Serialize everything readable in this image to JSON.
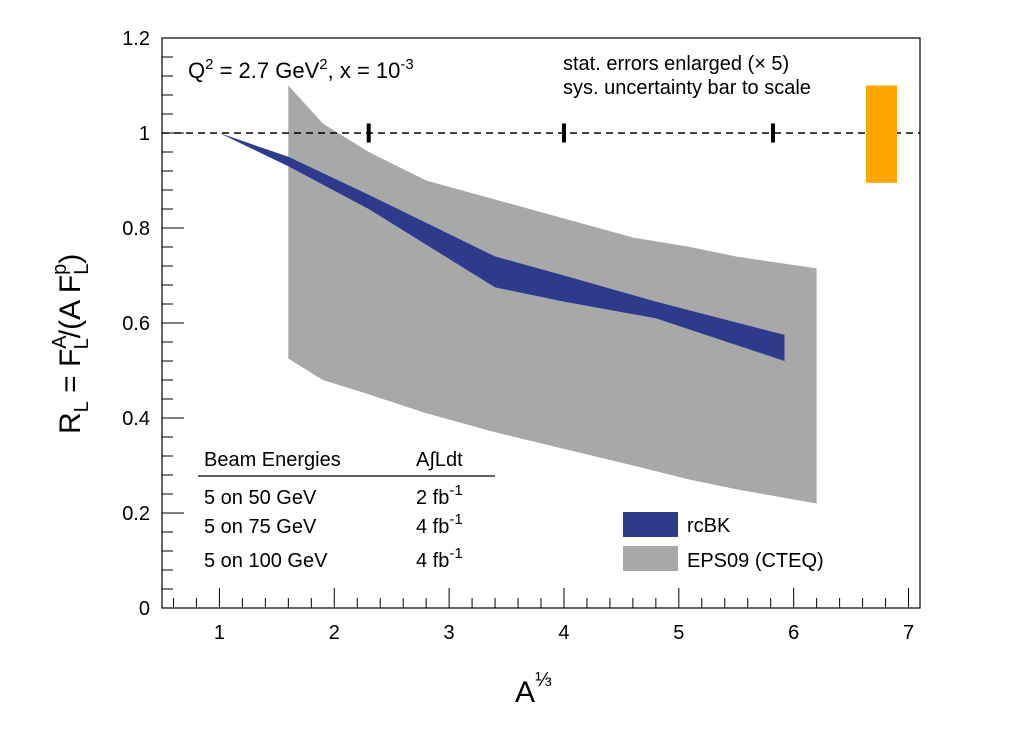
{
  "chart_data": {
    "type": "area",
    "xlabel": "A",
    "xlabel_exponent": "⅓",
    "ylabel": {
      "lhs": "R",
      "lhs_sub": "L",
      "eq": " = F",
      "num_sup": "A",
      "num_sub": "L",
      "mid": "/(A F",
      "den_sup": "p",
      "den_sub": "L",
      "close": ")"
    },
    "xlim": [
      0.5,
      7.1
    ],
    "ylim": [
      0,
      1.2
    ],
    "x_ticks": [
      "1",
      "2",
      "3",
      "4",
      "5",
      "6",
      "7"
    ],
    "y_ticks": [
      "0",
      "0.2",
      "0.4",
      "0.6",
      "0.8",
      "1",
      "1.2"
    ],
    "reference_line": {
      "y": 1.0,
      "style": "dashed"
    },
    "series": [
      {
        "name": "EPS09 (CTEQ)",
        "color": "#a8a8a8",
        "x": [
          1.6,
          1.9,
          2.3,
          2.8,
          3.4,
          4.0,
          4.6,
          5.1,
          5.5,
          6.2
        ],
        "upper": [
          1.1,
          1.02,
          0.96,
          0.9,
          0.86,
          0.82,
          0.78,
          0.76,
          0.74,
          0.715
        ],
        "lower": [
          0.525,
          0.48,
          0.45,
          0.41,
          0.37,
          0.335,
          0.3,
          0.27,
          0.25,
          0.22
        ]
      },
      {
        "name": "rcBK",
        "color": "#2e3a8c",
        "x": [
          1.0,
          1.6,
          2.3,
          3.4,
          4.0,
          4.8,
          5.92
        ],
        "upper": [
          1.0,
          0.95,
          0.87,
          0.74,
          0.7,
          0.645,
          0.575
        ],
        "lower": [
          1.0,
          0.93,
          0.84,
          0.675,
          0.645,
          0.61,
          0.52
        ]
      }
    ],
    "stat_error_markers": {
      "x": [
        2.3,
        4.0,
        5.82
      ],
      "y": 1.0,
      "half_height": 0.02
    },
    "sys_uncertainty_bar": {
      "x": [
        6.63,
        6.9
      ],
      "y": [
        0.895,
        1.1
      ],
      "color": "#ffa500"
    },
    "kinematics": {
      "text": "Q",
      "sup1": "2",
      "mid": " = 2.7 GeV",
      "sup2": "2",
      "mid2": ", x = 10",
      "sup3": "-3"
    },
    "notes": [
      "stat. errors enlarged (× 5)",
      "sys. uncertainty bar to scale"
    ],
    "table": {
      "headers": [
        "Beam Energies",
        "A∫Ldt"
      ],
      "rows": [
        {
          "energy": "5 on 50 GeV",
          "lumi": "2 fb",
          "lumi_sup": "-1"
        },
        {
          "energy": "5 on 75 GeV",
          "lumi": "4 fb",
          "lumi_sup": "-1"
        },
        {
          "energy": "5 on 100 GeV",
          "lumi": "4 fb",
          "lumi_sup": "-1"
        }
      ]
    }
  }
}
